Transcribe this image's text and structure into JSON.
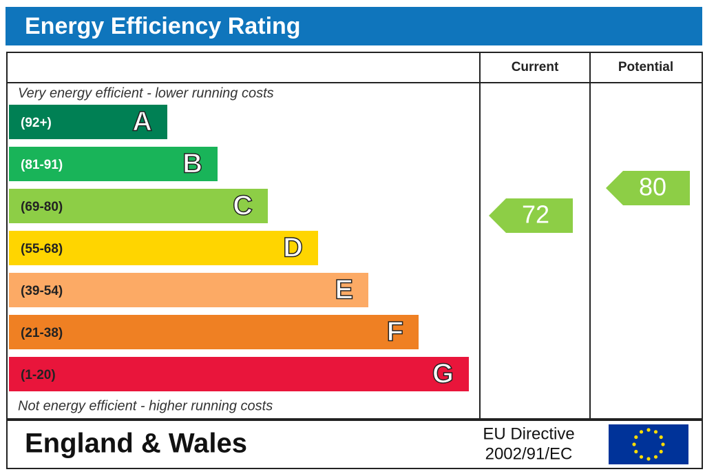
{
  "header": {
    "title": "Energy Efficiency Rating"
  },
  "columns": [
    "Current",
    "Potential"
  ],
  "top_note": "Very energy efficient - lower running costs",
  "bottom_note": "Not energy efficient - higher running costs",
  "bands": [
    {
      "range": "(92+)",
      "letter": "A",
      "color": "#008054"
    },
    {
      "range": "(81-91)",
      "letter": "B",
      "color": "#19b459"
    },
    {
      "range": "(69-80)",
      "letter": "C",
      "color": "#8dce46"
    },
    {
      "range": "(55-68)",
      "letter": "D",
      "color": "#ffd500"
    },
    {
      "range": "(39-54)",
      "letter": "E",
      "color": "#fcaa65"
    },
    {
      "range": "(21-38)",
      "letter": "F",
      "color": "#ef8023"
    },
    {
      "range": "(1-20)",
      "letter": "G",
      "color": "#e9153b"
    }
  ],
  "current": "72",
  "potential": "80",
  "footer": {
    "region": "England & Wales",
    "directive_line1": "EU Directive",
    "directive_line2": "2002/91/EC"
  }
}
